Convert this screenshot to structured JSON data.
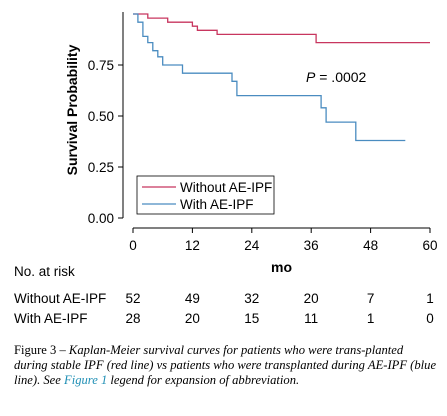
{
  "chart_data": {
    "type": "line",
    "ylabel": "Survival Probability",
    "xlabel": "mo",
    "xlim": [
      0,
      60
    ],
    "ylim": [
      0,
      1
    ],
    "xticks": [
      0,
      12,
      24,
      36,
      48,
      60
    ],
    "yticks": [
      0,
      0.25,
      0.5,
      0.75
    ],
    "yticklabels": [
      "0.00",
      "0.25",
      "0.50",
      "0.75"
    ],
    "annotation": {
      "p_label": "P",
      "p_value": " = .0002"
    },
    "legend_position": "bottom-left",
    "series": [
      {
        "name": "Without AE-IPF",
        "color": "#c8365f",
        "step_points": [
          [
            0,
            1.0
          ],
          [
            3,
            1.0
          ],
          [
            3,
            0.98
          ],
          [
            7,
            0.98
          ],
          [
            7,
            0.96
          ],
          [
            12,
            0.96
          ],
          [
            12,
            0.94
          ],
          [
            13,
            0.94
          ],
          [
            13,
            0.92
          ],
          [
            17,
            0.92
          ],
          [
            17,
            0.9
          ],
          [
            37,
            0.9
          ],
          [
            37,
            0.86
          ],
          [
            60,
            0.86
          ]
        ]
      },
      {
        "name": "With AE-IPF",
        "color": "#4a8cc0",
        "step_points": [
          [
            0,
            1.0
          ],
          [
            1,
            1.0
          ],
          [
            1,
            0.96
          ],
          [
            2,
            0.96
          ],
          [
            2,
            0.89
          ],
          [
            3,
            0.89
          ],
          [
            3,
            0.86
          ],
          [
            4,
            0.86
          ],
          [
            4,
            0.82
          ],
          [
            5,
            0.82
          ],
          [
            5,
            0.79
          ],
          [
            6,
            0.79
          ],
          [
            6,
            0.75
          ],
          [
            10,
            0.75
          ],
          [
            10,
            0.71
          ],
          [
            20,
            0.71
          ],
          [
            20,
            0.67
          ],
          [
            21,
            0.67
          ],
          [
            21,
            0.6
          ],
          [
            38,
            0.6
          ],
          [
            38,
            0.54
          ],
          [
            39,
            0.54
          ],
          [
            39,
            0.47
          ],
          [
            45,
            0.47
          ],
          [
            45,
            0.38
          ],
          [
            55,
            0.38
          ]
        ]
      }
    ]
  },
  "risk_table": {
    "title": "No. at risk",
    "rows": [
      {
        "label": "Without AE-IPF",
        "values": [
          "52",
          "49",
          "32",
          "20",
          "7",
          "1"
        ]
      },
      {
        "label": "With AE-IPF",
        "values": [
          "28",
          "20",
          "15",
          "11",
          "1",
          "0"
        ]
      }
    ]
  },
  "caption": {
    "figure_label": "Figure 3 – ",
    "text_1": "Kaplan-Meier survival curves for patients who were trans-planted during stable IPF (red line) vs patients who were transplanted during AE-IPF (blue line). See ",
    "link_text": "Figure 1",
    "text_2": " legend for expansion of abbreviation."
  }
}
